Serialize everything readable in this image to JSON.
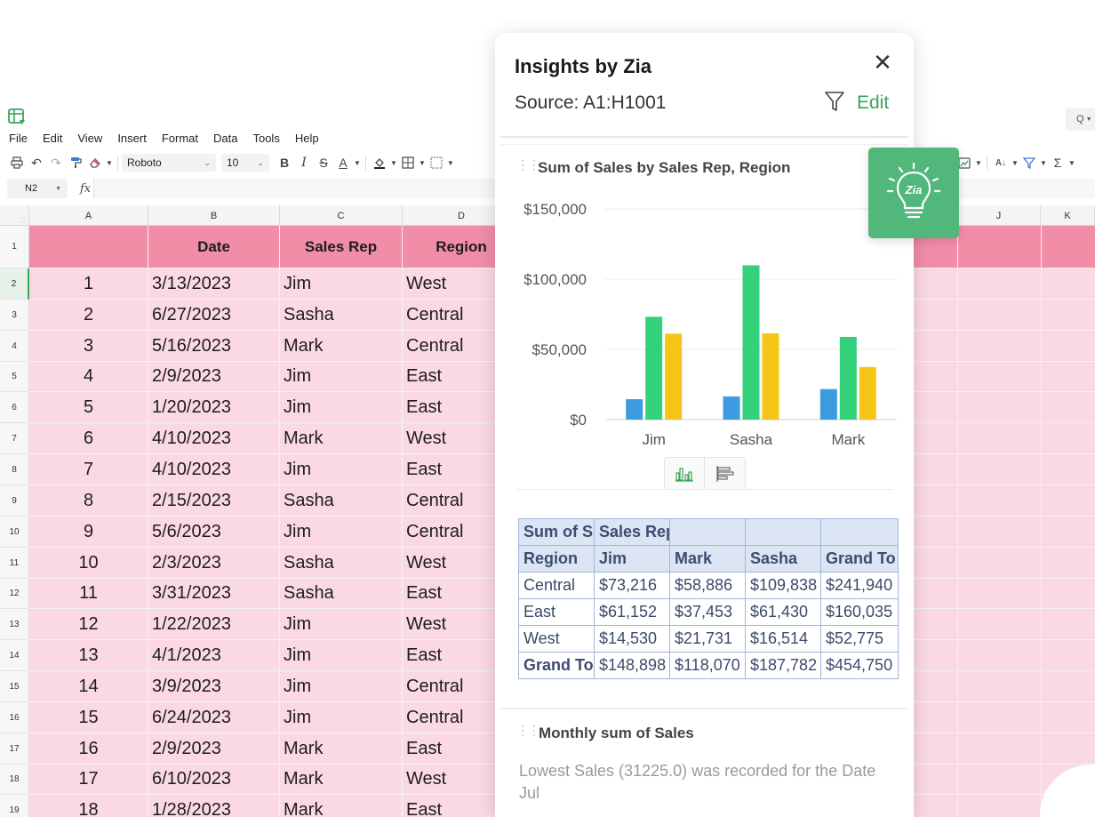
{
  "menu": [
    "File",
    "Edit",
    "View",
    "Insert",
    "Format",
    "Data",
    "Tools",
    "Help"
  ],
  "toolbar": {
    "font": "Roboto",
    "font_size": "10",
    "bold": "B",
    "italic": "I",
    "strike": "S",
    "underline": "A"
  },
  "formula_bar": {
    "cell_ref": "N2",
    "fx": "fx"
  },
  "search_icon_label": "Q",
  "columns": [
    "A",
    "B",
    "C",
    "D",
    "J",
    "K"
  ],
  "header_row": {
    "number": "1",
    "a": "",
    "b": "Date",
    "c": "Sales Rep",
    "d": "Region"
  },
  "rows": [
    {
      "n": "2",
      "a": "1",
      "b": "3/13/2023",
      "c": "Jim",
      "d": "West"
    },
    {
      "n": "3",
      "a": "2",
      "b": "6/27/2023",
      "c": "Sasha",
      "d": "Central"
    },
    {
      "n": "4",
      "a": "3",
      "b": "5/16/2023",
      "c": "Mark",
      "d": "Central"
    },
    {
      "n": "5",
      "a": "4",
      "b": "2/9/2023",
      "c": "Jim",
      "d": "East"
    },
    {
      "n": "6",
      "a": "5",
      "b": "1/20/2023",
      "c": "Jim",
      "d": "East"
    },
    {
      "n": "7",
      "a": "6",
      "b": "4/10/2023",
      "c": "Mark",
      "d": "West"
    },
    {
      "n": "8",
      "a": "7",
      "b": "4/10/2023",
      "c": "Jim",
      "d": "East"
    },
    {
      "n": "9",
      "a": "8",
      "b": "2/15/2023",
      "c": "Sasha",
      "d": "Central"
    },
    {
      "n": "10",
      "a": "9",
      "b": "5/6/2023",
      "c": "Jim",
      "d": "Central"
    },
    {
      "n": "11",
      "a": "10",
      "b": "2/3/2023",
      "c": "Sasha",
      "d": "West"
    },
    {
      "n": "12",
      "a": "11",
      "b": "3/31/2023",
      "c": "Sasha",
      "d": "East"
    },
    {
      "n": "13",
      "a": "12",
      "b": "1/22/2023",
      "c": "Jim",
      "d": "West"
    },
    {
      "n": "14",
      "a": "13",
      "b": "4/1/2023",
      "c": "Jim",
      "d": "East"
    },
    {
      "n": "15",
      "a": "14",
      "b": "3/9/2023",
      "c": "Jim",
      "d": "Central"
    },
    {
      "n": "16",
      "a": "15",
      "b": "6/24/2023",
      "c": "Jim",
      "d": "Central"
    },
    {
      "n": "17",
      "a": "16",
      "b": "2/9/2023",
      "c": "Mark",
      "d": "East"
    },
    {
      "n": "18",
      "a": "17",
      "b": "6/10/2023",
      "c": "Mark",
      "d": "West"
    },
    {
      "n": "19",
      "a": "18",
      "b": "1/28/2023",
      "c": "Mark",
      "d": "East"
    }
  ],
  "active_row": "2",
  "colors": {
    "header_pink": "#f28da8",
    "body_pink": "#fbd9e2",
    "accent_green": "#3aa35a",
    "badge_green": "#52b77b",
    "bar_blue": "#3d9be0",
    "bar_green": "#32d17a",
    "bar_yellow": "#f5c518"
  },
  "zia": {
    "title": "Insights by Zia",
    "source": "Source: A1:H1001",
    "edit": "Edit",
    "close_icon": "close-icon",
    "filter_icon": "filter-icon",
    "badge_icon": "lightbulb-zia-icon",
    "chart_card_title": "Sum of Sales by Sales Rep, Region",
    "insight_card_title": "Monthly sum of Sales",
    "insight_text": "Lowest Sales (31225.0) was recorded for the Date Jul"
  },
  "chart_data": {
    "type": "bar",
    "title": "Sum of Sales by Sales Rep, Region",
    "categories": [
      "Jim",
      "Sasha",
      "Mark"
    ],
    "series": [
      {
        "values": [
          14530,
          16514,
          21731
        ],
        "color": "#3d9be0"
      },
      {
        "values": [
          73216,
          109838,
          58886
        ],
        "color": "#32d17a"
      },
      {
        "values": [
          61152,
          61430,
          37453
        ],
        "color": "#f5c518"
      }
    ],
    "y_ticks": [
      "$0",
      "$50,000",
      "$100,000",
      "$150,000"
    ],
    "ylim": [
      0,
      150000
    ],
    "grid": true
  },
  "pivot": {
    "header1": [
      "Sum of S",
      "Sales Rep",
      "",
      "",
      ""
    ],
    "header2": [
      "Region",
      "Jim",
      "Mark",
      "Sasha",
      "Grand To"
    ],
    "rows": [
      [
        "Central",
        "$73,216",
        "$58,886",
        "$109,838",
        "$241,940"
      ],
      [
        "East",
        "$61,152",
        "$37,453",
        "$61,430",
        "$160,035"
      ],
      [
        "West",
        "$14,530",
        "$21,731",
        "$16,514",
        "$52,775"
      ]
    ],
    "total": [
      "Grand To",
      "$148,898",
      "$118,070",
      "$187,782",
      "$454,750"
    ]
  }
}
